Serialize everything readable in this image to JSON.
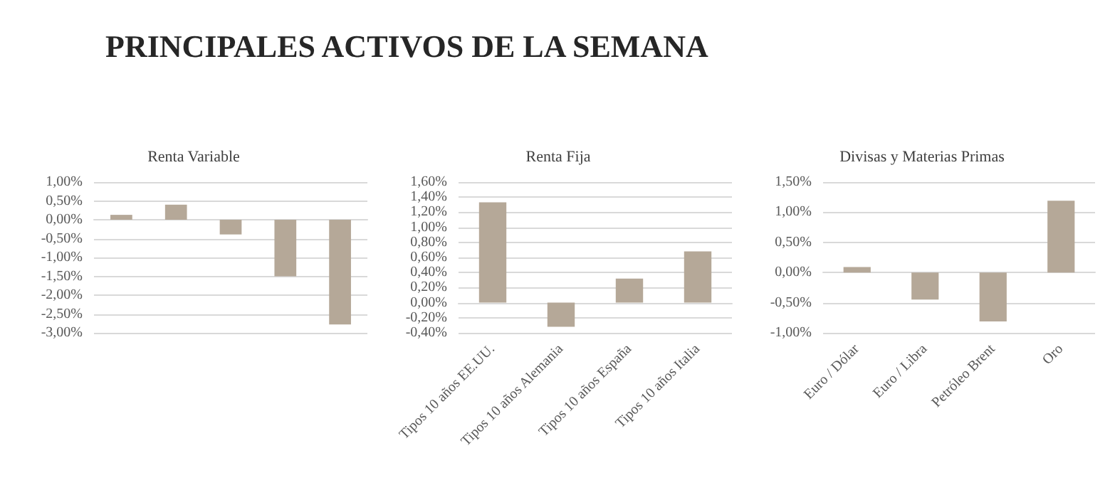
{
  "chart_data": [
    {
      "type": "bar",
      "title": "Renta Variable",
      "annotations": [
        "PRINCIPALES ACTIVOS DE LA SEMANA"
      ],
      "categories": [
        null,
        null,
        null,
        null,
        null
      ],
      "values": [
        0.13,
        0.4,
        -0.39,
        -1.5,
        -2.78
      ],
      "color": "#b5a898",
      "ylim": [
        -3,
        1
      ],
      "yticks": [
        {
          "value": -3,
          "label": "-3,00%"
        },
        {
          "value": -2.5,
          "label": "-2,50%"
        },
        {
          "value": -2,
          "label": "-2,00%"
        },
        {
          "value": -1.5,
          "label": "-1,50%"
        },
        {
          "value": -1,
          "label": "-1,00%"
        },
        {
          "value": -0.5,
          "label": "-0,50%"
        },
        {
          "value": 0,
          "label": "0,00%"
        },
        {
          "value": 0.5,
          "label": "0,50%"
        },
        {
          "value": 1,
          "label": "1,00%"
        }
      ],
      "grid": "y"
    },
    {
      "type": "bar",
      "title": "Renta Fija",
      "categories": [
        "Tipos 10 años EE.UU.",
        "Tipos 10 años Alemania",
        "Tipos 10 años España",
        "Tipos 10 años Italia"
      ],
      "values": [
        1.33,
        -0.32,
        0.32,
        0.68
      ],
      "color": "#b5a898",
      "ylim": [
        -0.4,
        1.6
      ],
      "yticks": [
        {
          "value": -0.4,
          "label": "-0,40%"
        },
        {
          "value": -0.2,
          "label": "-0,20%"
        },
        {
          "value": 0,
          "label": "0,00%"
        },
        {
          "value": 0.2,
          "label": "0,20%"
        },
        {
          "value": 0.4,
          "label": "0,40%"
        },
        {
          "value": 0.6,
          "label": "0,60%"
        },
        {
          "value": 0.8,
          "label": "0,80%"
        },
        {
          "value": 1,
          "label": "1,00%"
        },
        {
          "value": 1.2,
          "label": "1,20%"
        },
        {
          "value": 1.4,
          "label": "1,40%"
        },
        {
          "value": 1.6,
          "label": "1,60%"
        }
      ],
      "grid": "y"
    },
    {
      "type": "bar",
      "title": "Divisas y Materias Primas",
      "categories": [
        "Euro / Dólar",
        "Euro / Libra",
        "Petróleo Brent",
        "Oro"
      ],
      "values": [
        0.09,
        -0.45,
        -0.81,
        1.19
      ],
      "color": "#b5a898",
      "ylim": [
        -1,
        1.5
      ],
      "yticks": [
        {
          "value": -1,
          "label": "-1,00%"
        },
        {
          "value": -0.5,
          "label": "-0,50%"
        },
        {
          "value": 0,
          "label": "0,00%"
        },
        {
          "value": 0.5,
          "label": "0,50%"
        },
        {
          "value": 1,
          "label": "1,00%"
        },
        {
          "value": 1.5,
          "label": "1,50%"
        }
      ],
      "grid": "y"
    }
  ]
}
